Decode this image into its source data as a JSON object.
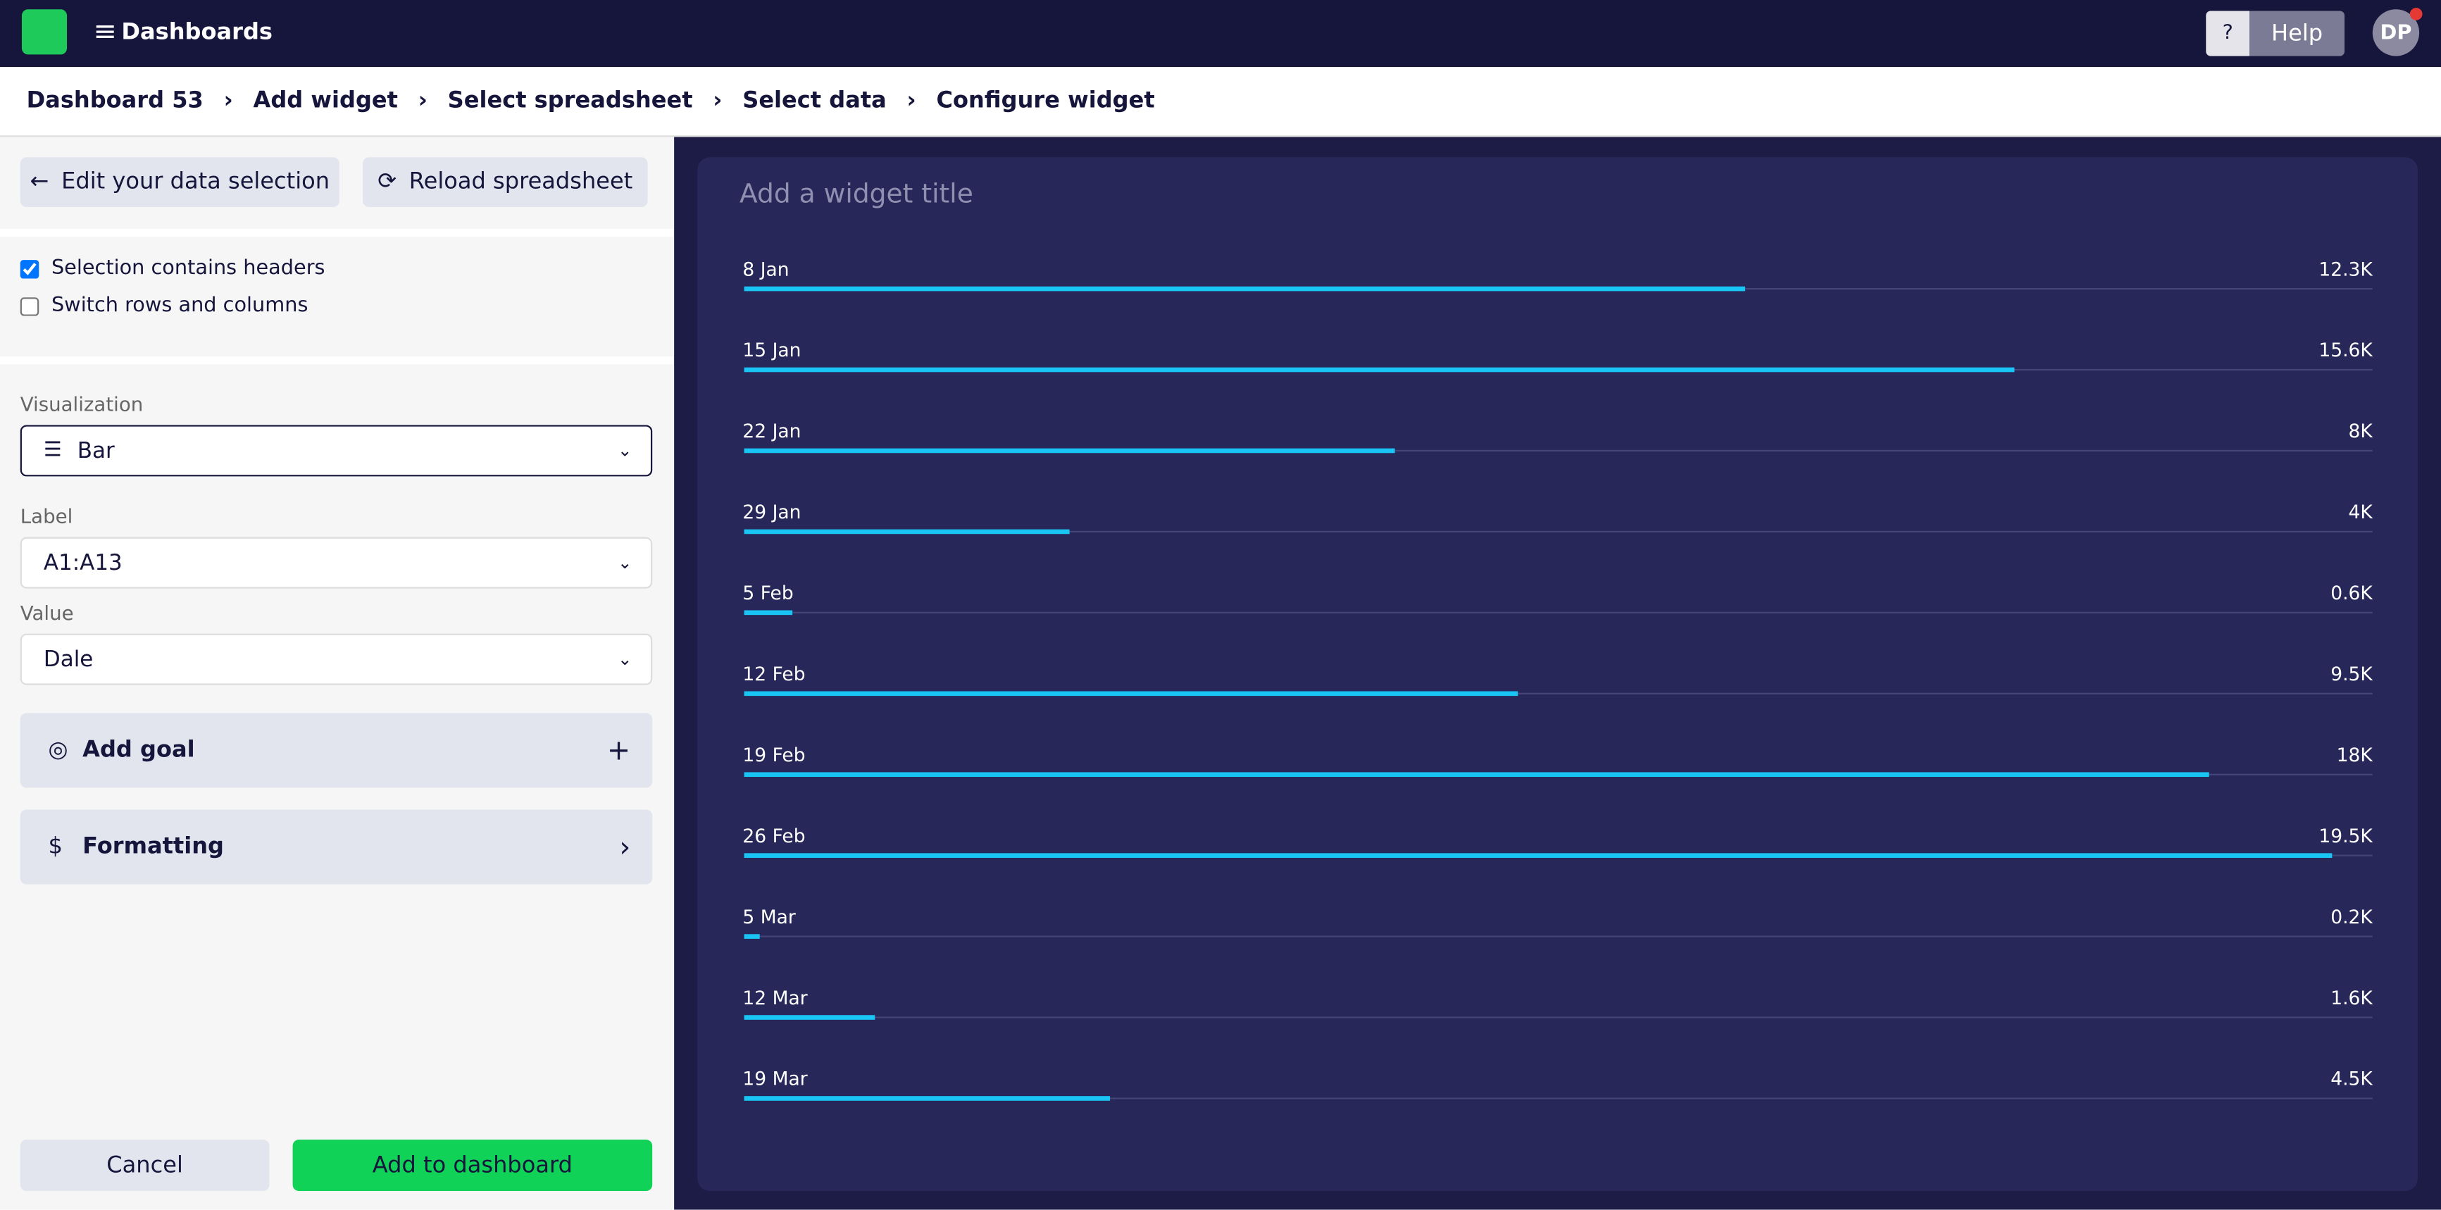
{
  "topbar": {
    "menu": "Dashboards",
    "help_icon": "?",
    "help": "Help",
    "avatar": "DP"
  },
  "breadcrumbs": [
    "Dashboard 53",
    "Add widget",
    "Select spreadsheet",
    "Select data",
    "Configure widget"
  ],
  "buttons": {
    "edit": "Edit your data selection",
    "reload": "Reload spreadsheet"
  },
  "checkboxes": [
    {
      "label": "Selection contains headers",
      "checked": true
    },
    {
      "label": "Switch rows and columns",
      "checked": false
    }
  ],
  "fields": [
    {
      "label": "Visualization",
      "value": "Bar"
    },
    {
      "label": "Label",
      "value": "A1:A13"
    },
    {
      "label": "Value",
      "value": "Dale"
    }
  ],
  "sections": [
    "Add goal",
    "Formatting"
  ],
  "footer": {
    "cancel": "Cancel",
    "submit": "Add to dashboard"
  },
  "chart_data": {
    "type": "bar",
    "title": "Add a widget title",
    "categories": [
      "8 Jan",
      "15 Jan",
      "22 Jan",
      "29 Jan",
      "5 Feb",
      "12 Feb",
      "19 Feb",
      "26 Feb",
      "5 Mar",
      "12 Mar",
      "19 Mar"
    ],
    "values": [
      12300,
      15600,
      8000,
      4000,
      600,
      9500,
      18000,
      19500,
      200,
      1600,
      4500
    ],
    "value_labels": [
      "12.3K",
      "15.6K",
      "8K",
      "4K",
      "0.6K",
      "9.5K",
      "18K",
      "19.5K",
      "0.2K",
      "1.6K",
      "4.5K"
    ],
    "color": "#19c5f5",
    "xlim": [
      0,
      20000
    ]
  }
}
